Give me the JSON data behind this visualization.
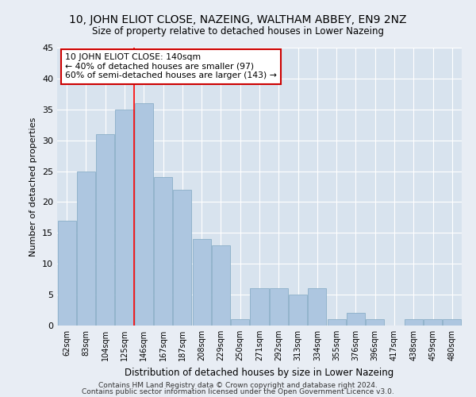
{
  "title": "10, JOHN ELIOT CLOSE, NAZEING, WALTHAM ABBEY, EN9 2NZ",
  "subtitle": "Size of property relative to detached houses in Lower Nazeing",
  "xlabel": "Distribution of detached houses by size in Lower Nazeing",
  "ylabel": "Number of detached properties",
  "categories": [
    "62sqm",
    "83sqm",
    "104sqm",
    "125sqm",
    "146sqm",
    "167sqm",
    "187sqm",
    "208sqm",
    "229sqm",
    "250sqm",
    "271sqm",
    "292sqm",
    "313sqm",
    "334sqm",
    "355sqm",
    "376sqm",
    "396sqm",
    "417sqm",
    "438sqm",
    "459sqm",
    "480sqm"
  ],
  "values": [
    17,
    25,
    31,
    35,
    36,
    24,
    22,
    14,
    13,
    1,
    6,
    6,
    5,
    6,
    1,
    2,
    1,
    0,
    1,
    1,
    1
  ],
  "bar_color": "#adc6e0",
  "bar_edgecolor": "#8aaec8",
  "property_line_index": 3.5,
  "property_sqm": 140,
  "annotation_text_line1": "10 JOHN ELIOT CLOSE: 140sqm",
  "annotation_text_line2": "← 40% of detached houses are smaller (97)",
  "annotation_text_line3": "60% of semi-detached houses are larger (143) →",
  "annotation_box_edgecolor": "#cc0000",
  "ylim": [
    0,
    45
  ],
  "yticks": [
    0,
    5,
    10,
    15,
    20,
    25,
    30,
    35,
    40,
    45
  ],
  "footer_line1": "Contains HM Land Registry data © Crown copyright and database right 2024.",
  "footer_line2": "Contains public sector information licensed under the Open Government Licence v3.0.",
  "background_color": "#e8edf4",
  "plot_background": "#d8e3ee"
}
